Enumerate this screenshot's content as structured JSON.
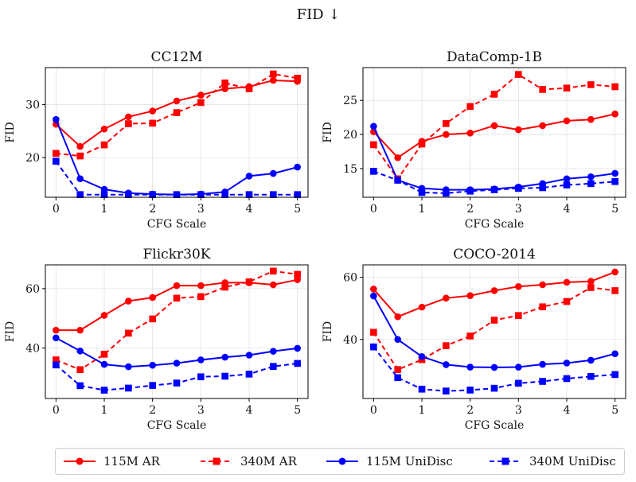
{
  "figure": {
    "title": "FID ↓"
  },
  "legend": [
    {
      "label": "115M AR",
      "color": "#ff0000",
      "dash": "solid",
      "marker": "circle"
    },
    {
      "label": "340M AR",
      "color": "#ff0000",
      "dash": "dashed",
      "marker": "square"
    },
    {
      "label": "115M UniDisc",
      "color": "#0000ff",
      "dash": "solid",
      "marker": "circle"
    },
    {
      "label": "340M UniDisc",
      "color": "#0000ff",
      "dash": "dashed",
      "marker": "square"
    }
  ],
  "chart_data": [
    {
      "type": "line",
      "title": "CC12M",
      "xlabel": "CFG Scale",
      "ylabel": "FID",
      "x": [
        0,
        0.5,
        1,
        1.5,
        2,
        2.5,
        3,
        3.5,
        4,
        4.5,
        5
      ],
      "xticks": [
        0,
        1,
        2,
        3,
        4,
        5
      ],
      "yticks": [
        20,
        30
      ],
      "ylim": [
        12.5,
        37
      ],
      "grid": true,
      "series": [
        {
          "name": "115M AR",
          "values": [
            26.3,
            22.1,
            25.4,
            27.7,
            28.8,
            30.7,
            31.8,
            33.0,
            33.4,
            34.6,
            34.4
          ]
        },
        {
          "name": "340M AR",
          "values": [
            20.8,
            20.3,
            22.4,
            26.4,
            26.5,
            28.5,
            30.4,
            34.1,
            33.0,
            35.8,
            35.0
          ]
        },
        {
          "name": "115M UniDisc",
          "values": [
            27.2,
            16.0,
            14.0,
            13.3,
            13.1,
            13.0,
            13.1,
            13.5,
            16.5,
            17.0,
            18.2
          ]
        },
        {
          "name": "340M UniDisc",
          "values": [
            19.3,
            13.0,
            13.0,
            13.0,
            13.0,
            13.0,
            13.0,
            13.0,
            13.0,
            13.0,
            13.0
          ]
        }
      ]
    },
    {
      "type": "line",
      "title": "DataComp-1B",
      "xlabel": "CFG Scale",
      "ylabel": "FID",
      "x": [
        0,
        0.5,
        1,
        1.5,
        2,
        2.5,
        3,
        3.5,
        4,
        4.5,
        5
      ],
      "xticks": [
        0,
        1,
        2,
        3,
        4,
        5
      ],
      "yticks": [
        15,
        20,
        25
      ],
      "ylim": [
        10.8,
        29.8
      ],
      "grid": true,
      "series": [
        {
          "name": "115M AR",
          "values": [
            20.4,
            16.6,
            19.0,
            20.0,
            20.2,
            21.3,
            20.7,
            21.3,
            22.0,
            22.2,
            23.0
          ]
        },
        {
          "name": "340M AR",
          "values": [
            18.5,
            13.5,
            18.6,
            21.6,
            24.1,
            25.9,
            28.8,
            26.6,
            26.8,
            27.3,
            27.0
          ]
        },
        {
          "name": "115M UniDisc",
          "values": [
            21.2,
            13.3,
            12.1,
            11.9,
            11.9,
            12.0,
            12.3,
            12.8,
            13.5,
            13.8,
            14.3
          ]
        },
        {
          "name": "340M UniDisc",
          "values": [
            14.6,
            13.3,
            11.5,
            11.4,
            11.7,
            11.9,
            12.1,
            12.2,
            12.6,
            12.8,
            13.1
          ]
        }
      ]
    },
    {
      "type": "line",
      "title": "Flickr30K",
      "xlabel": "CFG Scale",
      "ylabel": "FID",
      "x": [
        0,
        0.5,
        1,
        1.5,
        2,
        2.5,
        3,
        3.5,
        4,
        4.5,
        5
      ],
      "xticks": [
        0,
        1,
        2,
        3,
        4,
        5
      ],
      "yticks": [
        40,
        60
      ],
      "ylim": [
        23,
        68
      ],
      "grid": true,
      "series": [
        {
          "name": "115M AR",
          "values": [
            46.0,
            46.0,
            51.0,
            55.8,
            57.0,
            61.0,
            61.0,
            62.0,
            62.0,
            61.3,
            63.0
          ]
        },
        {
          "name": "340M AR",
          "values": [
            36.0,
            32.7,
            37.9,
            45.0,
            49.8,
            56.8,
            57.3,
            60.5,
            62.3,
            65.9,
            64.8
          ]
        },
        {
          "name": "115M UniDisc",
          "values": [
            43.4,
            39.0,
            34.5,
            33.7,
            34.2,
            34.9,
            36.0,
            36.9,
            37.6,
            38.9,
            39.9
          ]
        },
        {
          "name": "340M UniDisc",
          "values": [
            34.3,
            27.3,
            25.8,
            26.5,
            27.4,
            28.2,
            30.3,
            30.5,
            31.2,
            33.8,
            34.8
          ]
        }
      ]
    },
    {
      "type": "line",
      "title": "COCO-2014",
      "xlabel": "CFG Scale",
      "ylabel": "FID",
      "x": [
        0,
        0.5,
        1,
        1.5,
        2,
        2.5,
        3,
        3.5,
        4,
        4.5,
        5
      ],
      "xticks": [
        0,
        1,
        2,
        3,
        4,
        5
      ],
      "yticks": [
        40,
        60
      ],
      "ylim": [
        21,
        64
      ],
      "grid": true,
      "series": [
        {
          "name": "115M AR",
          "values": [
            56.2,
            47.3,
            50.4,
            53.3,
            54.1,
            55.7,
            57.0,
            57.6,
            58.4,
            58.7,
            61.7
          ]
        },
        {
          "name": "340M AR",
          "values": [
            42.3,
            30.3,
            33.5,
            38.0,
            41.1,
            46.2,
            47.7,
            50.5,
            52.2,
            56.7,
            55.7
          ]
        },
        {
          "name": "115M UniDisc",
          "values": [
            54.0,
            40.0,
            34.5,
            31.9,
            31.1,
            31.0,
            31.1,
            32.0,
            32.4,
            33.3,
            35.4
          ]
        },
        {
          "name": "340M UniDisc",
          "values": [
            37.6,
            27.7,
            24.0,
            23.4,
            23.7,
            24.3,
            25.9,
            26.5,
            27.4,
            28.1,
            28.7
          ]
        }
      ]
    }
  ]
}
